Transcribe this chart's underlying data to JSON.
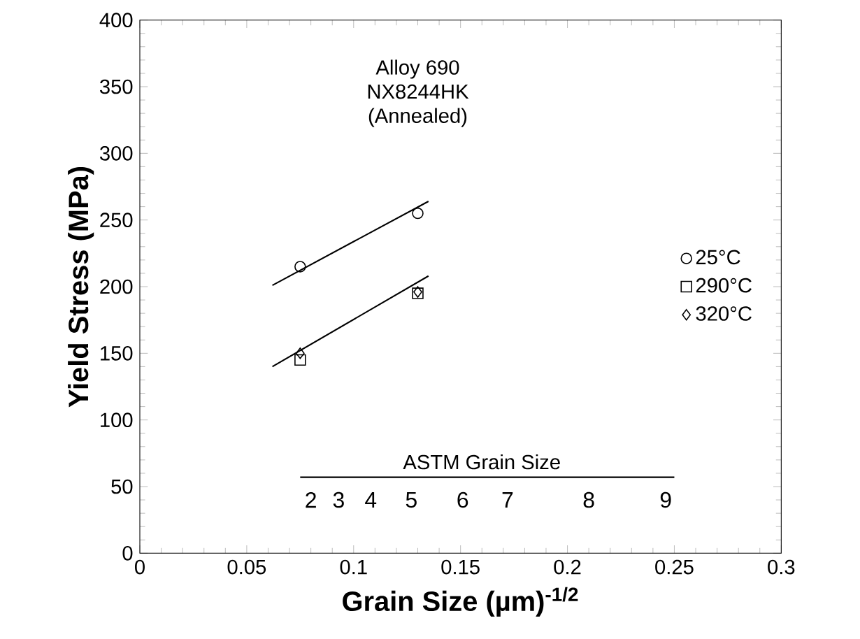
{
  "chart_data": {
    "type": "scatter",
    "title": "Alloy 690",
    "subtitle": "NX8244HK",
    "xlabel": "Grain Size (µm)$^{-1/2}$",
    "ylabel": "Yield Stress (MPa)",
    "xlim": [
      0,
      0.3
    ],
    "xticks": [
      0,
      0.05,
      0.1,
      0.15,
      0.2,
      0.25,
      0.3
    ],
    "ylim": [
      0,
      400
    ],
    "yticks": [
      0,
      50,
      100,
      150,
      200,
      250,
      300,
      350,
      400
    ],
    "grid": false,
    "legend": "right",
    "series": [
      {
        "name": "25°C",
        "color": "#000000",
        "marker": "circle",
        "x": [
          0.075,
          0.13
        ],
        "values": [
          215,
          255
        ]
      },
      {
        "name": "290°C",
        "color": "#000000",
        "marker": "square",
        "x": [
          0.075,
          0.13
        ],
        "values": [
          145,
          195
        ]
      },
      {
        "name": "320°C",
        "color": "#000000",
        "marker": "diamond",
        "x": [
          0.075,
          0.13
        ],
        "values": [
          150,
          196
        ]
      },
      {
        "type": "line",
        "color": "#000000",
        "x": [
          0.062,
          0.135
        ],
        "values": [
          201,
          264
        ]
      },
      {
        "type": "line",
        "color": "#000000",
        "x": [
          0.062,
          0.135
        ],
        "values": [
          140,
          208
        ]
      },
      {
        "type": "line",
        "color": "#000000",
        "x": [
          0.075,
          0.25
        ],
        "values": [
          57,
          57
        ]
      }
    ],
    "annotations": [
      "(Annealed)",
      "ASTM Grain Size",
      "2",
      "3",
      "4",
      "5",
      "6",
      "7",
      "8",
      "9"
    ]
  }
}
